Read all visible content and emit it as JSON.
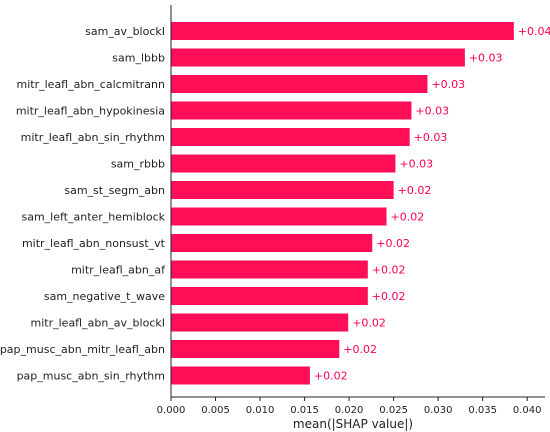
{
  "chart_data": {
    "type": "bar",
    "orientation": "horizontal",
    "xlabel": "mean(|SHAP value|)",
    "xlim": [
      0,
      0.042
    ],
    "xticks": [
      "0.000",
      "0.005",
      "0.010",
      "0.015",
      "0.020",
      "0.025",
      "0.030",
      "0.035",
      "0.040"
    ],
    "bar_color": "#ff0d57",
    "label_color": "#ff0052",
    "categories": [
      "sam_av_blockI",
      "sam_lbbb",
      "mitr_leafl_abn_calcmitrann",
      "mitr_leafl_abn_hypokinesia",
      "mitr_leafl_abn_sin_rhythm",
      "sam_rbbb",
      "sam_st_segm_abn",
      "sam_left_anter_hemiblock",
      "mitr_leafl_abn_nonsust_vt",
      "mitr_leafl_abn_af",
      "sam_negative_t_wave",
      "mitr_leafl_abn_av_blockI",
      "pap_musc_abn_mitr_leafl_abn",
      "pap_musc_abn_sin_rhythm"
    ],
    "values": [
      0.0385,
      0.033,
      0.0288,
      0.027,
      0.0268,
      0.0252,
      0.025,
      0.0242,
      0.0226,
      0.0221,
      0.0221,
      0.0199,
      0.0189,
      0.0156
    ],
    "value_labels": [
      "+0.04",
      "+0.03",
      "+0.03",
      "+0.03",
      "+0.03",
      "+0.03",
      "+0.02",
      "+0.02",
      "+0.02",
      "+0.02",
      "+0.02",
      "+0.02",
      "+0.02",
      "+0.02"
    ]
  }
}
